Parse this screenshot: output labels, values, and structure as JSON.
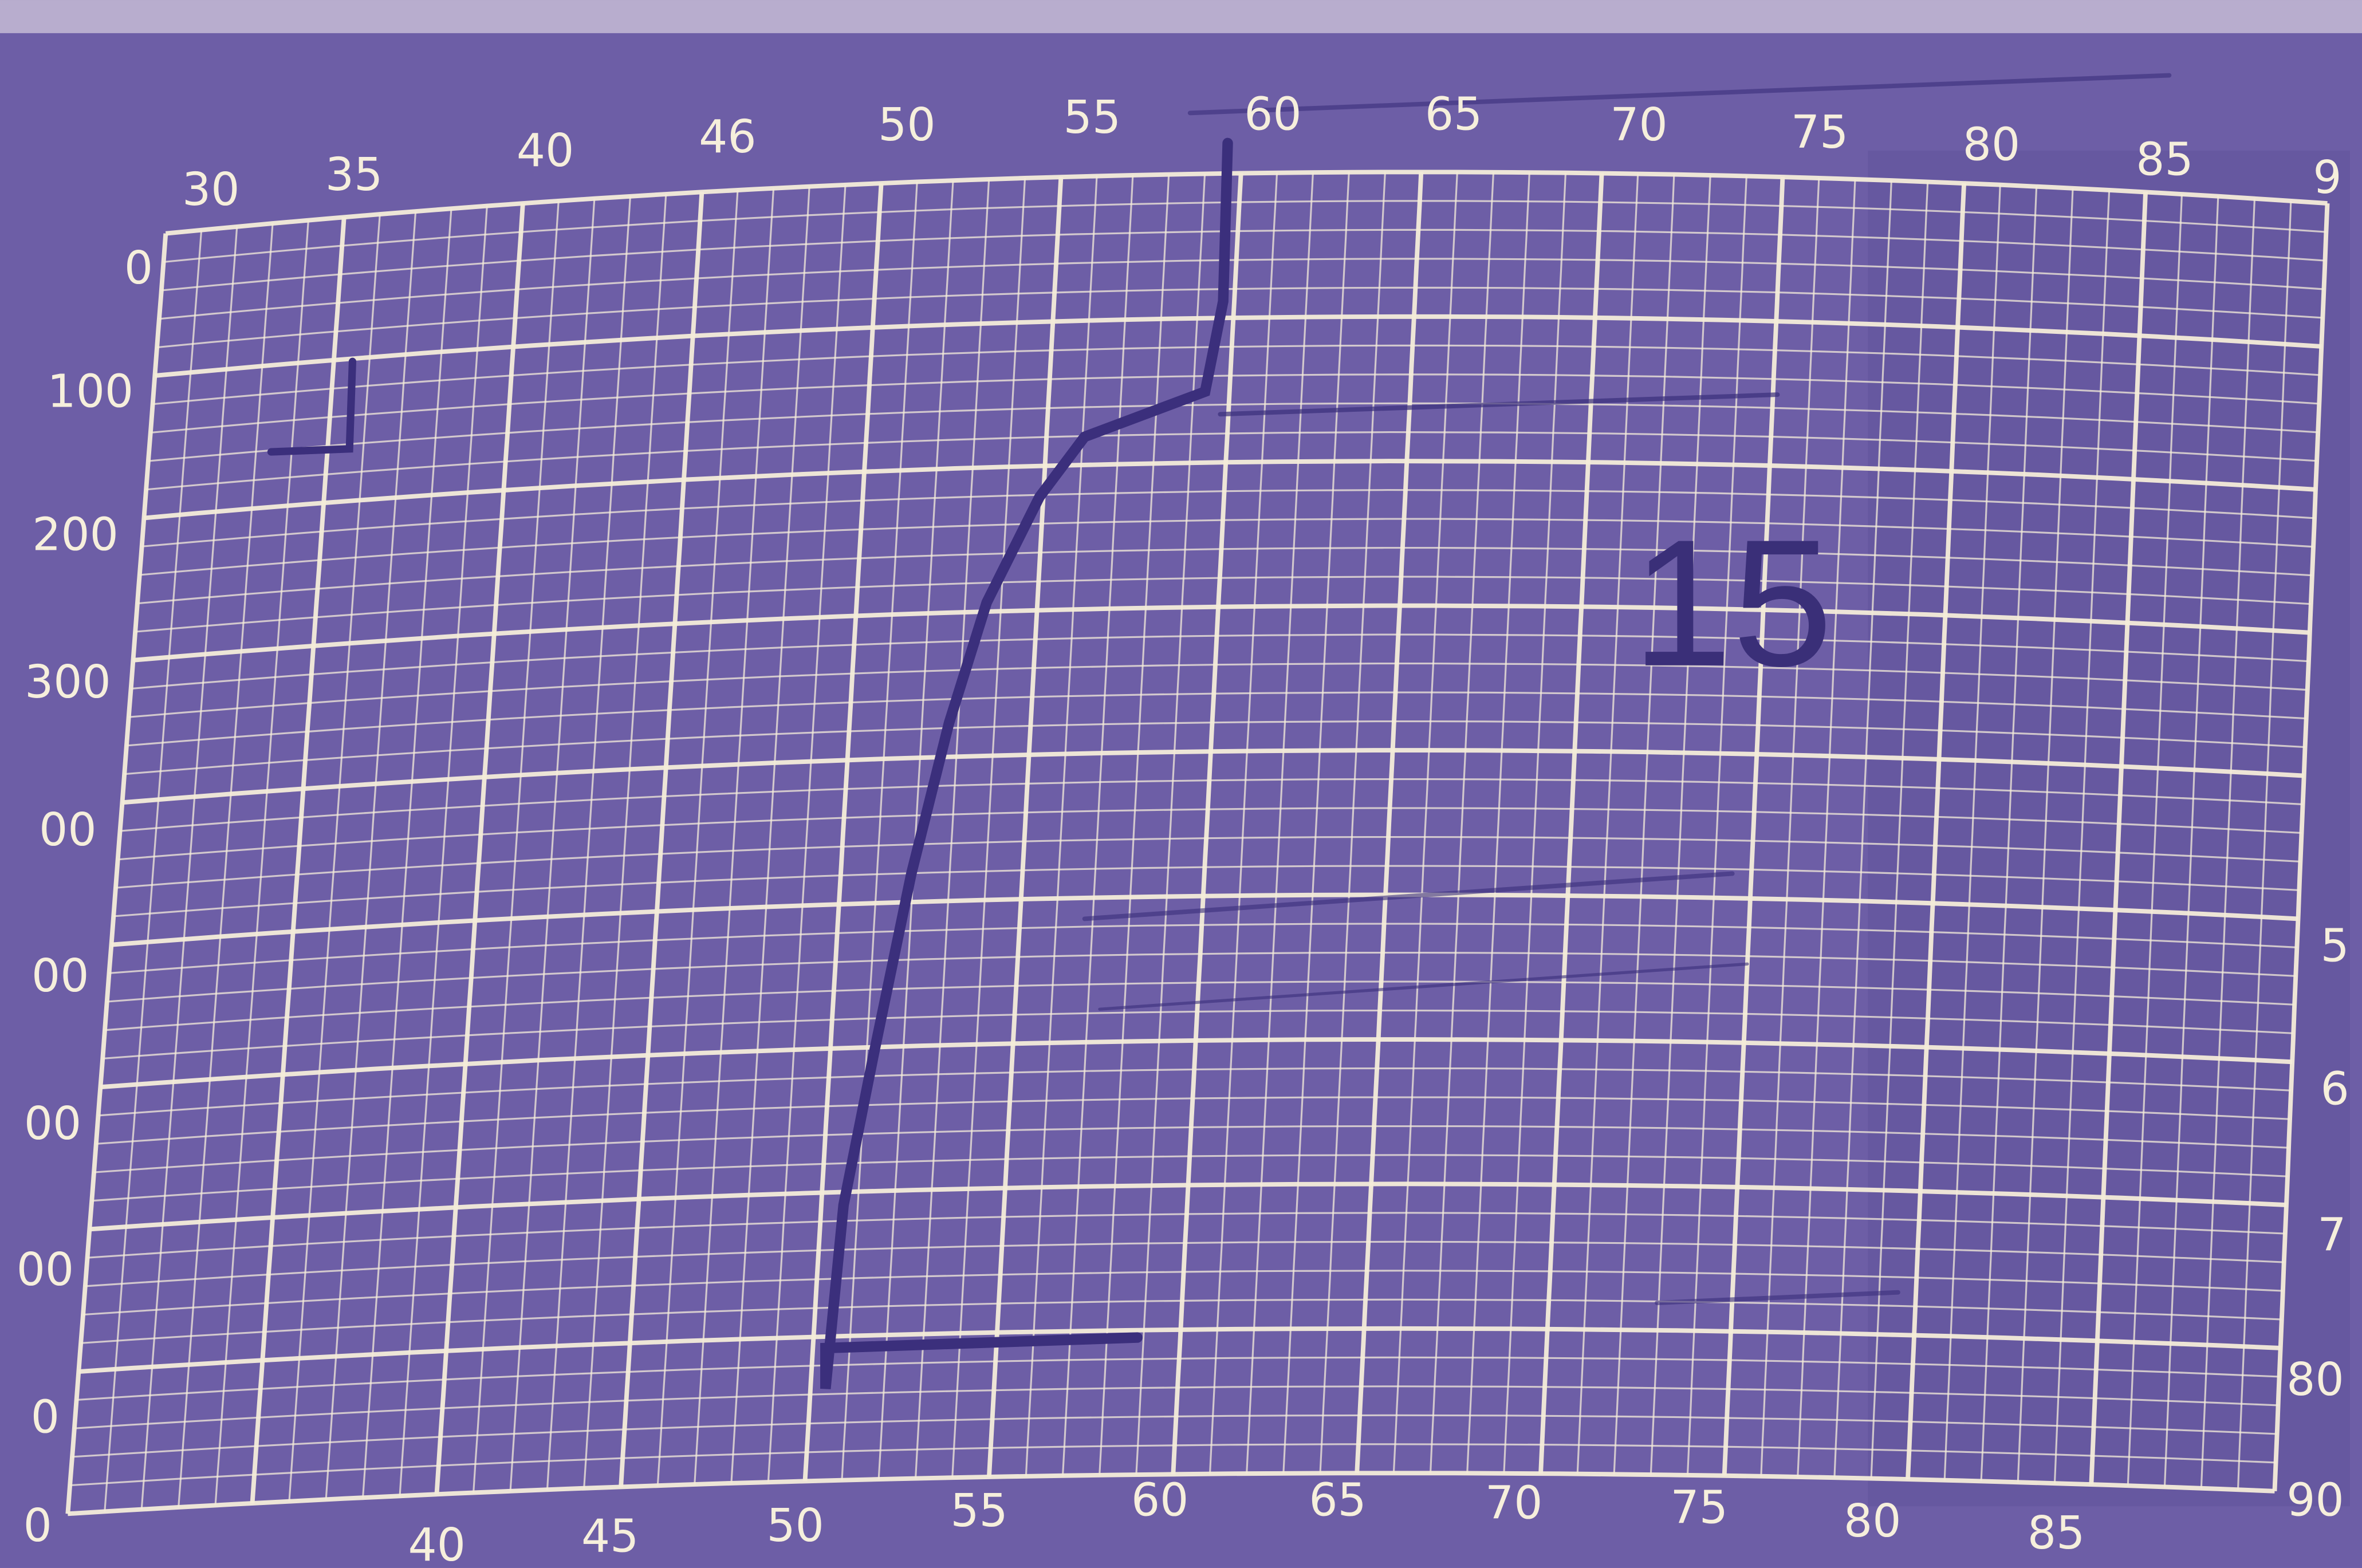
{
  "chart_sheet": {
    "top_labels": [
      "30",
      "35",
      "40",
      "46",
      "50",
      "55",
      "60",
      "65",
      "70",
      "75",
      "80",
      "85",
      "9"
    ],
    "left_labels": [
      "0",
      "100",
      "200",
      "300",
      "00",
      "00",
      "00",
      "00",
      "0",
      "0"
    ],
    "right_labels": [
      "5",
      "6",
      "7",
      "80",
      "90"
    ],
    "bottom_labels": [
      "40",
      "45",
      "50",
      "55",
      "60",
      "65",
      "70",
      "75",
      "80",
      "85"
    ],
    "handwritten": "15"
  }
}
